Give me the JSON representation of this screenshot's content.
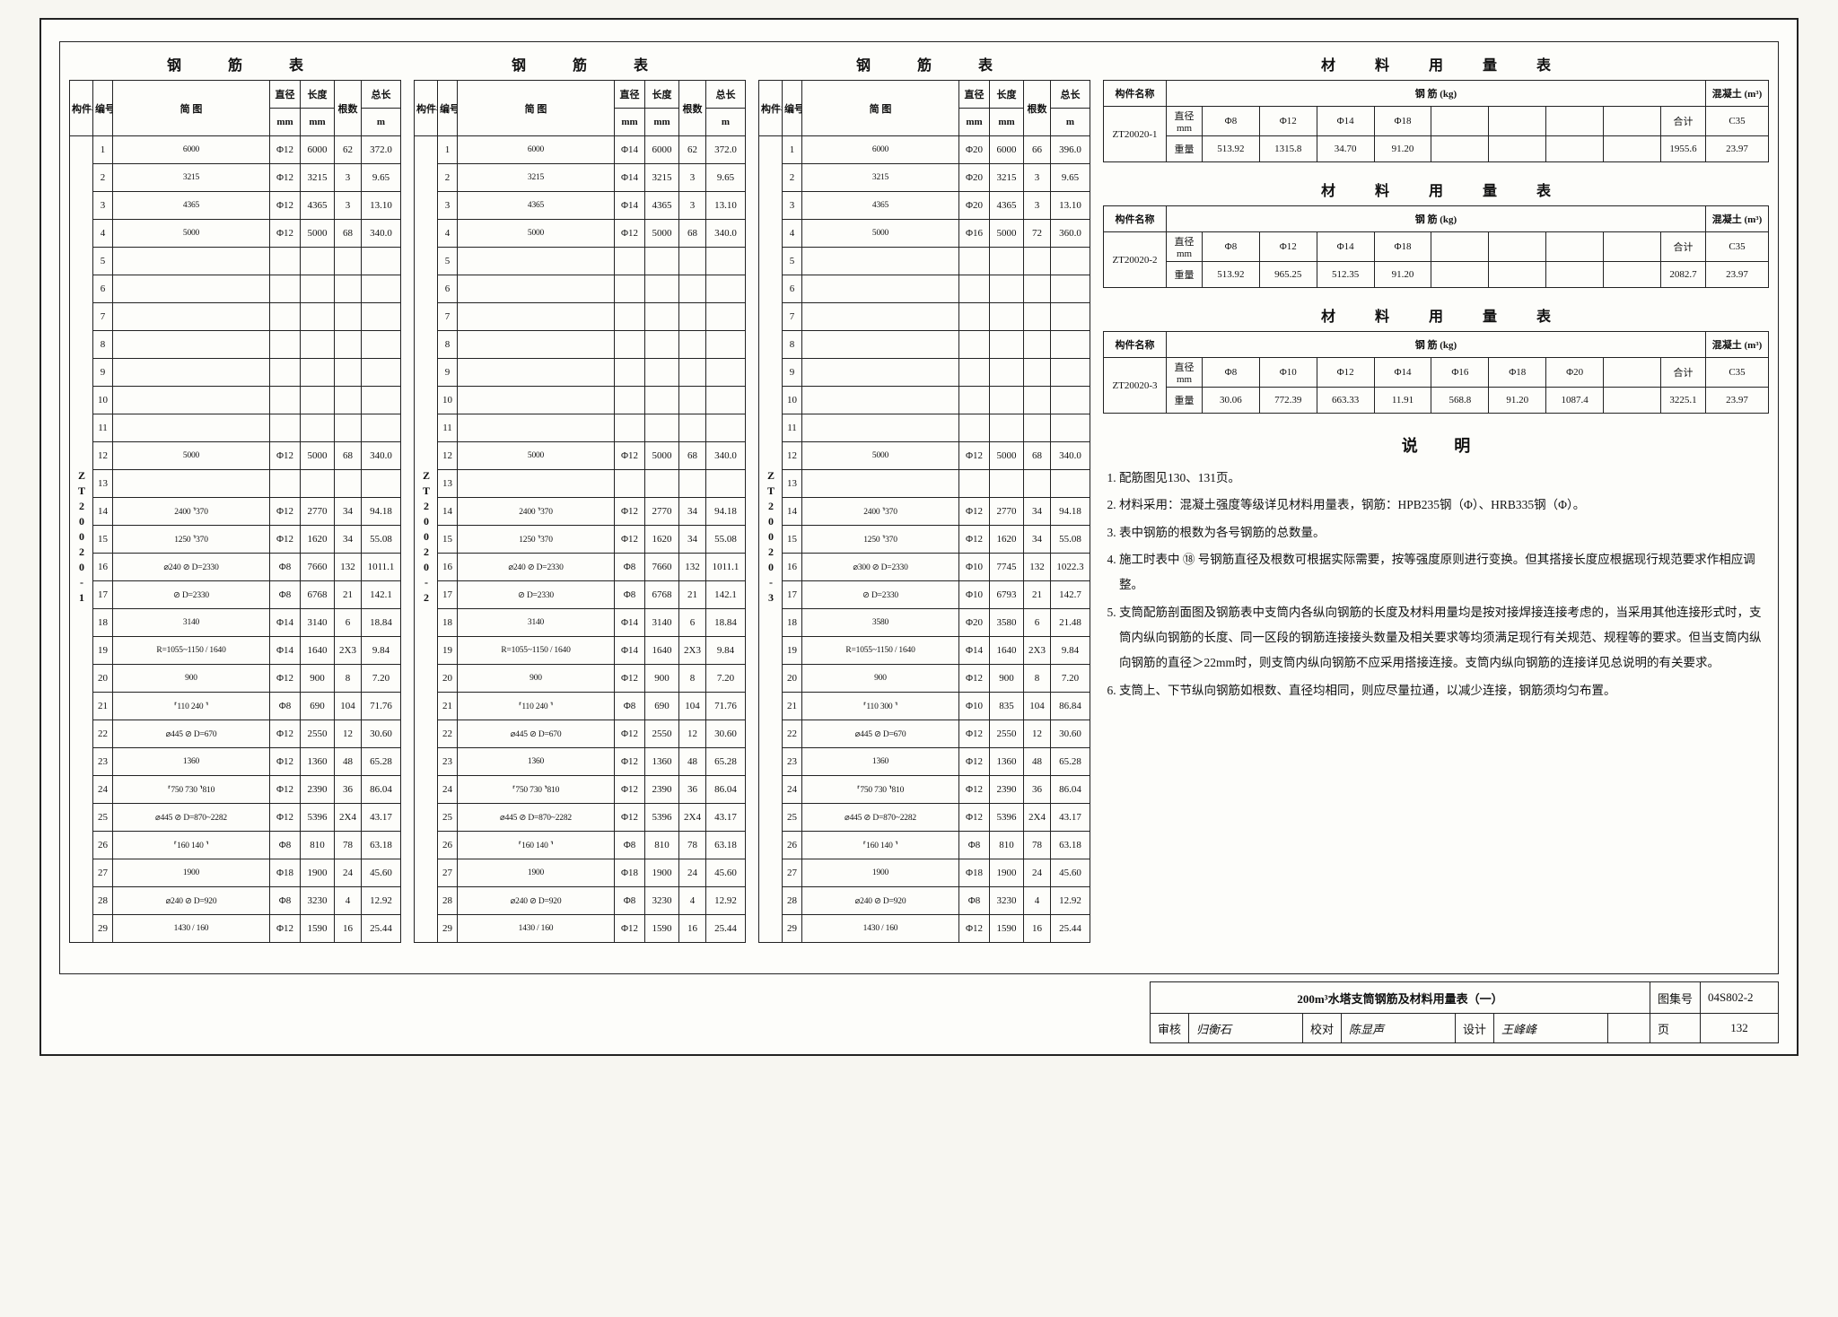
{
  "common": {
    "rebar_table_title": "钢 筋 表",
    "material_table_title": "材 料 用 量 表",
    "notes_title": "说 明",
    "h_component": "构件名称",
    "h_no": "编号",
    "h_sketch": "简 图",
    "h_dia": "直径",
    "h_dia_unit": "mm",
    "h_len": "长度",
    "h_len_unit": "mm",
    "h_count": "根数",
    "h_totlen": "总长",
    "h_totlen_unit": "m",
    "h_rebar_kg": "钢 筋 (kg)",
    "h_concrete": "混凝土 (m³)",
    "h_sum": "合计",
    "h_weight": "重量"
  },
  "rebarTables": [
    {
      "component": "ZT20020-1",
      "rows": [
        {
          "no": "1",
          "sk": "6000",
          "dia": "Φ12",
          "len": "6000",
          "cnt": "62",
          "tot": "372.0"
        },
        {
          "no": "2",
          "sk": "3215",
          "dia": "Φ12",
          "len": "3215",
          "cnt": "3",
          "tot": "9.65"
        },
        {
          "no": "3",
          "sk": "4365",
          "dia": "Φ12",
          "len": "4365",
          "cnt": "3",
          "tot": "13.10"
        },
        {
          "no": "4",
          "sk": "5000",
          "dia": "Φ12",
          "len": "5000",
          "cnt": "68",
          "tot": "340.0"
        },
        {
          "no": "5",
          "sk": "",
          "dia": "",
          "len": "",
          "cnt": "",
          "tot": ""
        },
        {
          "no": "6",
          "sk": "",
          "dia": "",
          "len": "",
          "cnt": "",
          "tot": ""
        },
        {
          "no": "7",
          "sk": "",
          "dia": "",
          "len": "",
          "cnt": "",
          "tot": ""
        },
        {
          "no": "8",
          "sk": "",
          "dia": "",
          "len": "",
          "cnt": "",
          "tot": ""
        },
        {
          "no": "9",
          "sk": "",
          "dia": "",
          "len": "",
          "cnt": "",
          "tot": ""
        },
        {
          "no": "10",
          "sk": "",
          "dia": "",
          "len": "",
          "cnt": "",
          "tot": ""
        },
        {
          "no": "11",
          "sk": "",
          "dia": "",
          "len": "",
          "cnt": "",
          "tot": ""
        },
        {
          "no": "12",
          "sk": "5000",
          "dia": "Φ12",
          "len": "5000",
          "cnt": "68",
          "tot": "340.0"
        },
        {
          "no": "13",
          "sk": "",
          "dia": "",
          "len": "",
          "cnt": "",
          "tot": ""
        },
        {
          "no": "14",
          "sk": "2400  ⸣370",
          "dia": "Φ12",
          "len": "2770",
          "cnt": "34",
          "tot": "94.18"
        },
        {
          "no": "15",
          "sk": "1250  ⸣370",
          "dia": "Φ12",
          "len": "1620",
          "cnt": "34",
          "tot": "55.08"
        },
        {
          "no": "16",
          "sk": "⌀240 ⊘ D=2330",
          "dia": "Φ8",
          "len": "7660",
          "cnt": "132",
          "tot": "1011.1"
        },
        {
          "no": "17",
          "sk": "⊘ D=2330",
          "dia": "Φ8",
          "len": "6768",
          "cnt": "21",
          "tot": "142.1"
        },
        {
          "no": "18",
          "sk": "3140",
          "dia": "Φ14",
          "len": "3140",
          "cnt": "6",
          "tot": "18.84"
        },
        {
          "no": "19",
          "sk": "R=1055~1150 / 1640",
          "dia": "Φ14",
          "len": "1640",
          "cnt": "2X3",
          "tot": "9.84"
        },
        {
          "no": "20",
          "sk": "900",
          "dia": "Φ12",
          "len": "900",
          "cnt": "8",
          "tot": "7.20"
        },
        {
          "no": "21",
          "sk": "⸢110 240 ⸣",
          "dia": "Φ8",
          "len": "690",
          "cnt": "104",
          "tot": "71.76"
        },
        {
          "no": "22",
          "sk": "⌀445 ⊘ D=670",
          "dia": "Φ12",
          "len": "2550",
          "cnt": "12",
          "tot": "30.60"
        },
        {
          "no": "23",
          "sk": "1360",
          "dia": "Φ12",
          "len": "1360",
          "cnt": "48",
          "tot": "65.28"
        },
        {
          "no": "24",
          "sk": "⸢750  730  ⸣810",
          "dia": "Φ12",
          "len": "2390",
          "cnt": "36",
          "tot": "86.04"
        },
        {
          "no": "25",
          "sk": "⌀445 ⊘ D=870~2282",
          "dia": "Φ12",
          "len": "5396",
          "cnt": "2X4",
          "tot": "43.17"
        },
        {
          "no": "26",
          "sk": "⸢160 140 ⸣",
          "dia": "Φ8",
          "len": "810",
          "cnt": "78",
          "tot": "63.18"
        },
        {
          "no": "27",
          "sk": "1900",
          "dia": "Φ18",
          "len": "1900",
          "cnt": "24",
          "tot": "45.60"
        },
        {
          "no": "28",
          "sk": "⌀240 ⊘ D=920",
          "dia": "Φ8",
          "len": "3230",
          "cnt": "4",
          "tot": "12.92"
        },
        {
          "no": "29",
          "sk": "1430 / 160",
          "dia": "Φ12",
          "len": "1590",
          "cnt": "16",
          "tot": "25.44"
        }
      ]
    },
    {
      "component": "ZT20020-2",
      "rows": [
        {
          "no": "1",
          "sk": "6000",
          "dia": "Φ14",
          "len": "6000",
          "cnt": "62",
          "tot": "372.0"
        },
        {
          "no": "2",
          "sk": "3215",
          "dia": "Φ14",
          "len": "3215",
          "cnt": "3",
          "tot": "9.65"
        },
        {
          "no": "3",
          "sk": "4365",
          "dia": "Φ14",
          "len": "4365",
          "cnt": "3",
          "tot": "13.10"
        },
        {
          "no": "4",
          "sk": "5000",
          "dia": "Φ12",
          "len": "5000",
          "cnt": "68",
          "tot": "340.0"
        },
        {
          "no": "5",
          "sk": "",
          "dia": "",
          "len": "",
          "cnt": "",
          "tot": ""
        },
        {
          "no": "6",
          "sk": "",
          "dia": "",
          "len": "",
          "cnt": "",
          "tot": ""
        },
        {
          "no": "7",
          "sk": "",
          "dia": "",
          "len": "",
          "cnt": "",
          "tot": ""
        },
        {
          "no": "8",
          "sk": "",
          "dia": "",
          "len": "",
          "cnt": "",
          "tot": ""
        },
        {
          "no": "9",
          "sk": "",
          "dia": "",
          "len": "",
          "cnt": "",
          "tot": ""
        },
        {
          "no": "10",
          "sk": "",
          "dia": "",
          "len": "",
          "cnt": "",
          "tot": ""
        },
        {
          "no": "11",
          "sk": "",
          "dia": "",
          "len": "",
          "cnt": "",
          "tot": ""
        },
        {
          "no": "12",
          "sk": "5000",
          "dia": "Φ12",
          "len": "5000",
          "cnt": "68",
          "tot": "340.0"
        },
        {
          "no": "13",
          "sk": "",
          "dia": "",
          "len": "",
          "cnt": "",
          "tot": ""
        },
        {
          "no": "14",
          "sk": "2400  ⸣370",
          "dia": "Φ12",
          "len": "2770",
          "cnt": "34",
          "tot": "94.18"
        },
        {
          "no": "15",
          "sk": "1250  ⸣370",
          "dia": "Φ12",
          "len": "1620",
          "cnt": "34",
          "tot": "55.08"
        },
        {
          "no": "16",
          "sk": "⌀240 ⊘ D=2330",
          "dia": "Φ8",
          "len": "7660",
          "cnt": "132",
          "tot": "1011.1"
        },
        {
          "no": "17",
          "sk": "⊘ D=2330",
          "dia": "Φ8",
          "len": "6768",
          "cnt": "21",
          "tot": "142.1"
        },
        {
          "no": "18",
          "sk": "3140",
          "dia": "Φ14",
          "len": "3140",
          "cnt": "6",
          "tot": "18.84"
        },
        {
          "no": "19",
          "sk": "R=1055~1150 / 1640",
          "dia": "Φ14",
          "len": "1640",
          "cnt": "2X3",
          "tot": "9.84"
        },
        {
          "no": "20",
          "sk": "900",
          "dia": "Φ12",
          "len": "900",
          "cnt": "8",
          "tot": "7.20"
        },
        {
          "no": "21",
          "sk": "⸢110 240 ⸣",
          "dia": "Φ8",
          "len": "690",
          "cnt": "104",
          "tot": "71.76"
        },
        {
          "no": "22",
          "sk": "⌀445 ⊘ D=670",
          "dia": "Φ12",
          "len": "2550",
          "cnt": "12",
          "tot": "30.60"
        },
        {
          "no": "23",
          "sk": "1360",
          "dia": "Φ12",
          "len": "1360",
          "cnt": "48",
          "tot": "65.28"
        },
        {
          "no": "24",
          "sk": "⸢750  730  ⸣810",
          "dia": "Φ12",
          "len": "2390",
          "cnt": "36",
          "tot": "86.04"
        },
        {
          "no": "25",
          "sk": "⌀445 ⊘ D=870~2282",
          "dia": "Φ12",
          "len": "5396",
          "cnt": "2X4",
          "tot": "43.17"
        },
        {
          "no": "26",
          "sk": "⸢160 140 ⸣",
          "dia": "Φ8",
          "len": "810",
          "cnt": "78",
          "tot": "63.18"
        },
        {
          "no": "27",
          "sk": "1900",
          "dia": "Φ18",
          "len": "1900",
          "cnt": "24",
          "tot": "45.60"
        },
        {
          "no": "28",
          "sk": "⌀240 ⊘ D=920",
          "dia": "Φ8",
          "len": "3230",
          "cnt": "4",
          "tot": "12.92"
        },
        {
          "no": "29",
          "sk": "1430 / 160",
          "dia": "Φ12",
          "len": "1590",
          "cnt": "16",
          "tot": "25.44"
        }
      ]
    },
    {
      "component": "ZT20020-3",
      "rows": [
        {
          "no": "1",
          "sk": "6000",
          "dia": "Φ20",
          "len": "6000",
          "cnt": "66",
          "tot": "396.0"
        },
        {
          "no": "2",
          "sk": "3215",
          "dia": "Φ20",
          "len": "3215",
          "cnt": "3",
          "tot": "9.65"
        },
        {
          "no": "3",
          "sk": "4365",
          "dia": "Φ20",
          "len": "4365",
          "cnt": "3",
          "tot": "13.10"
        },
        {
          "no": "4",
          "sk": "5000",
          "dia": "Φ16",
          "len": "5000",
          "cnt": "72",
          "tot": "360.0"
        },
        {
          "no": "5",
          "sk": "",
          "dia": "",
          "len": "",
          "cnt": "",
          "tot": ""
        },
        {
          "no": "6",
          "sk": "",
          "dia": "",
          "len": "",
          "cnt": "",
          "tot": ""
        },
        {
          "no": "7",
          "sk": "",
          "dia": "",
          "len": "",
          "cnt": "",
          "tot": ""
        },
        {
          "no": "8",
          "sk": "",
          "dia": "",
          "len": "",
          "cnt": "",
          "tot": ""
        },
        {
          "no": "9",
          "sk": "",
          "dia": "",
          "len": "",
          "cnt": "",
          "tot": ""
        },
        {
          "no": "10",
          "sk": "",
          "dia": "",
          "len": "",
          "cnt": "",
          "tot": ""
        },
        {
          "no": "11",
          "sk": "",
          "dia": "",
          "len": "",
          "cnt": "",
          "tot": ""
        },
        {
          "no": "12",
          "sk": "5000",
          "dia": "Φ12",
          "len": "5000",
          "cnt": "68",
          "tot": "340.0"
        },
        {
          "no": "13",
          "sk": "",
          "dia": "",
          "len": "",
          "cnt": "",
          "tot": ""
        },
        {
          "no": "14",
          "sk": "2400  ⸣370",
          "dia": "Φ12",
          "len": "2770",
          "cnt": "34",
          "tot": "94.18"
        },
        {
          "no": "15",
          "sk": "1250  ⸣370",
          "dia": "Φ12",
          "len": "1620",
          "cnt": "34",
          "tot": "55.08"
        },
        {
          "no": "16",
          "sk": "⌀300 ⊘ D=2330",
          "dia": "Φ10",
          "len": "7745",
          "cnt": "132",
          "tot": "1022.3"
        },
        {
          "no": "17",
          "sk": "⊘ D=2330",
          "dia": "Φ10",
          "len": "6793",
          "cnt": "21",
          "tot": "142.7"
        },
        {
          "no": "18",
          "sk": "3580",
          "dia": "Φ20",
          "len": "3580",
          "cnt": "6",
          "tot": "21.48"
        },
        {
          "no": "19",
          "sk": "R=1055~1150 / 1640",
          "dia": "Φ14",
          "len": "1640",
          "cnt": "2X3",
          "tot": "9.84"
        },
        {
          "no": "20",
          "sk": "900",
          "dia": "Φ12",
          "len": "900",
          "cnt": "8",
          "tot": "7.20"
        },
        {
          "no": "21",
          "sk": "⸢110 300 ⸣",
          "dia": "Φ10",
          "len": "835",
          "cnt": "104",
          "tot": "86.84"
        },
        {
          "no": "22",
          "sk": "⌀445 ⊘ D=670",
          "dia": "Φ12",
          "len": "2550",
          "cnt": "12",
          "tot": "30.60"
        },
        {
          "no": "23",
          "sk": "1360",
          "dia": "Φ12",
          "len": "1360",
          "cnt": "48",
          "tot": "65.28"
        },
        {
          "no": "24",
          "sk": "⸢750  730  ⸣810",
          "dia": "Φ12",
          "len": "2390",
          "cnt": "36",
          "tot": "86.04"
        },
        {
          "no": "25",
          "sk": "⌀445 ⊘ D=870~2282",
          "dia": "Φ12",
          "len": "5396",
          "cnt": "2X4",
          "tot": "43.17"
        },
        {
          "no": "26",
          "sk": "⸢160 140 ⸣",
          "dia": "Φ8",
          "len": "810",
          "cnt": "78",
          "tot": "63.18"
        },
        {
          "no": "27",
          "sk": "1900",
          "dia": "Φ18",
          "len": "1900",
          "cnt": "24",
          "tot": "45.60"
        },
        {
          "no": "28",
          "sk": "⌀240 ⊘ D=920",
          "dia": "Φ8",
          "len": "3230",
          "cnt": "4",
          "tot": "12.92"
        },
        {
          "no": "29",
          "sk": "1430 / 160",
          "dia": "Φ12",
          "len": "1590",
          "cnt": "16",
          "tot": "25.44"
        }
      ]
    }
  ],
  "materialTables": [
    {
      "component": "ZT20020-1",
      "dia_labels": [
        "Φ8",
        "Φ12",
        "Φ14",
        "Φ18",
        "",
        "",
        "",
        ""
      ],
      "weights": [
        "513.92",
        "1315.8",
        "34.70",
        "91.20",
        "",
        "",
        "",
        ""
      ],
      "sum": "1955.6",
      "concrete": "C35",
      "concrete_vol": "23.97"
    },
    {
      "component": "ZT20020-2",
      "dia_labels": [
        "Φ8",
        "Φ12",
        "Φ14",
        "Φ18",
        "",
        "",
        "",
        ""
      ],
      "weights": [
        "513.92",
        "965.25",
        "512.35",
        "91.20",
        "",
        "",
        "",
        ""
      ],
      "sum": "2082.7",
      "concrete": "C35",
      "concrete_vol": "23.97"
    },
    {
      "component": "ZT20020-3",
      "dia_labels": [
        "Φ8",
        "Φ10",
        "Φ12",
        "Φ14",
        "Φ16",
        "Φ18",
        "Φ20",
        ""
      ],
      "weights": [
        "30.06",
        "772.39",
        "663.33",
        "11.91",
        "568.8",
        "91.20",
        "1087.4",
        ""
      ],
      "sum": "3225.1",
      "concrete": "C35",
      "concrete_vol": "23.97"
    }
  ],
  "notes": [
    "配筋图见130、131页。",
    "材料采用：混凝土强度等级详见材料用量表，钢筋：HPB235钢（Φ）、HRB335钢（Φ）。",
    "表中钢筋的根数为各号钢筋的总数量。",
    "施工时表中 ⑱ 号钢筋直径及根数可根据实际需要，按等强度原则进行变换。但其搭接长度应根据现行规范要求作相应调整。",
    "支筒配筋剖面图及钢筋表中支筒内各纵向钢筋的长度及材料用量均是按对接焊接连接考虑的，当采用其他连接形式时，支筒内纵向钢筋的长度、同一区段的钢筋连接接头数量及相关要求等均须满足现行有关规范、规程等的要求。但当支筒内纵向钢筋的直径＞22mm时，则支筒内纵向钢筋不应采用搭接连接。支筒内纵向钢筋的连接详见总说明的有关要求。",
    "支筒上、下节纵向钢筋如根数、直径均相同，则应尽量拉通，以减少连接，钢筋须均匀布置。"
  ],
  "titleblock": {
    "drawing_title": "200m³水塔支筒钢筋及材料用量表（一）",
    "set_label": "图集号",
    "set_no": "04S802-2",
    "reviewer_label": "审核",
    "reviewer": "归衡石",
    "checker_label": "校对",
    "checker": "陈显声",
    "designer_label": "设计",
    "designer": "王峰峰",
    "page_label": "页",
    "page_no": "132"
  }
}
